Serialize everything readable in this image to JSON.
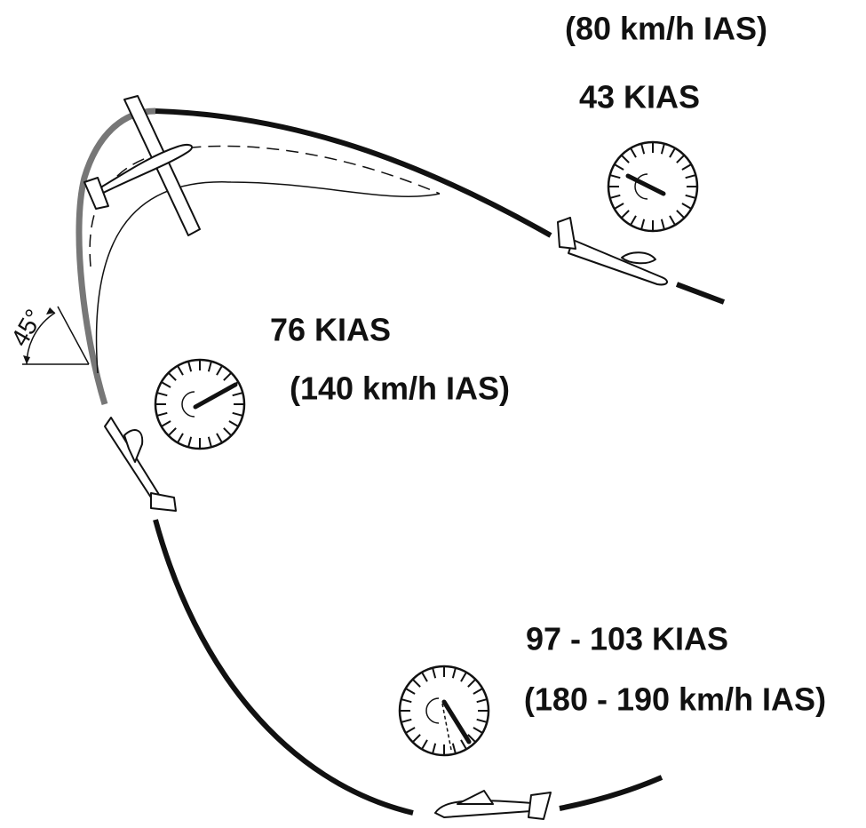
{
  "stations": [
    {
      "speed": "43 KIAS",
      "metric": "(80 km/h IAS)"
    },
    {
      "speed": "76 KIAS",
      "metric": "(140 km/h IAS)"
    },
    {
      "speed": "97 - 103 KIAS",
      "metric": "(180 - 190 km/h IAS)"
    }
  ],
  "angle": "45°"
}
